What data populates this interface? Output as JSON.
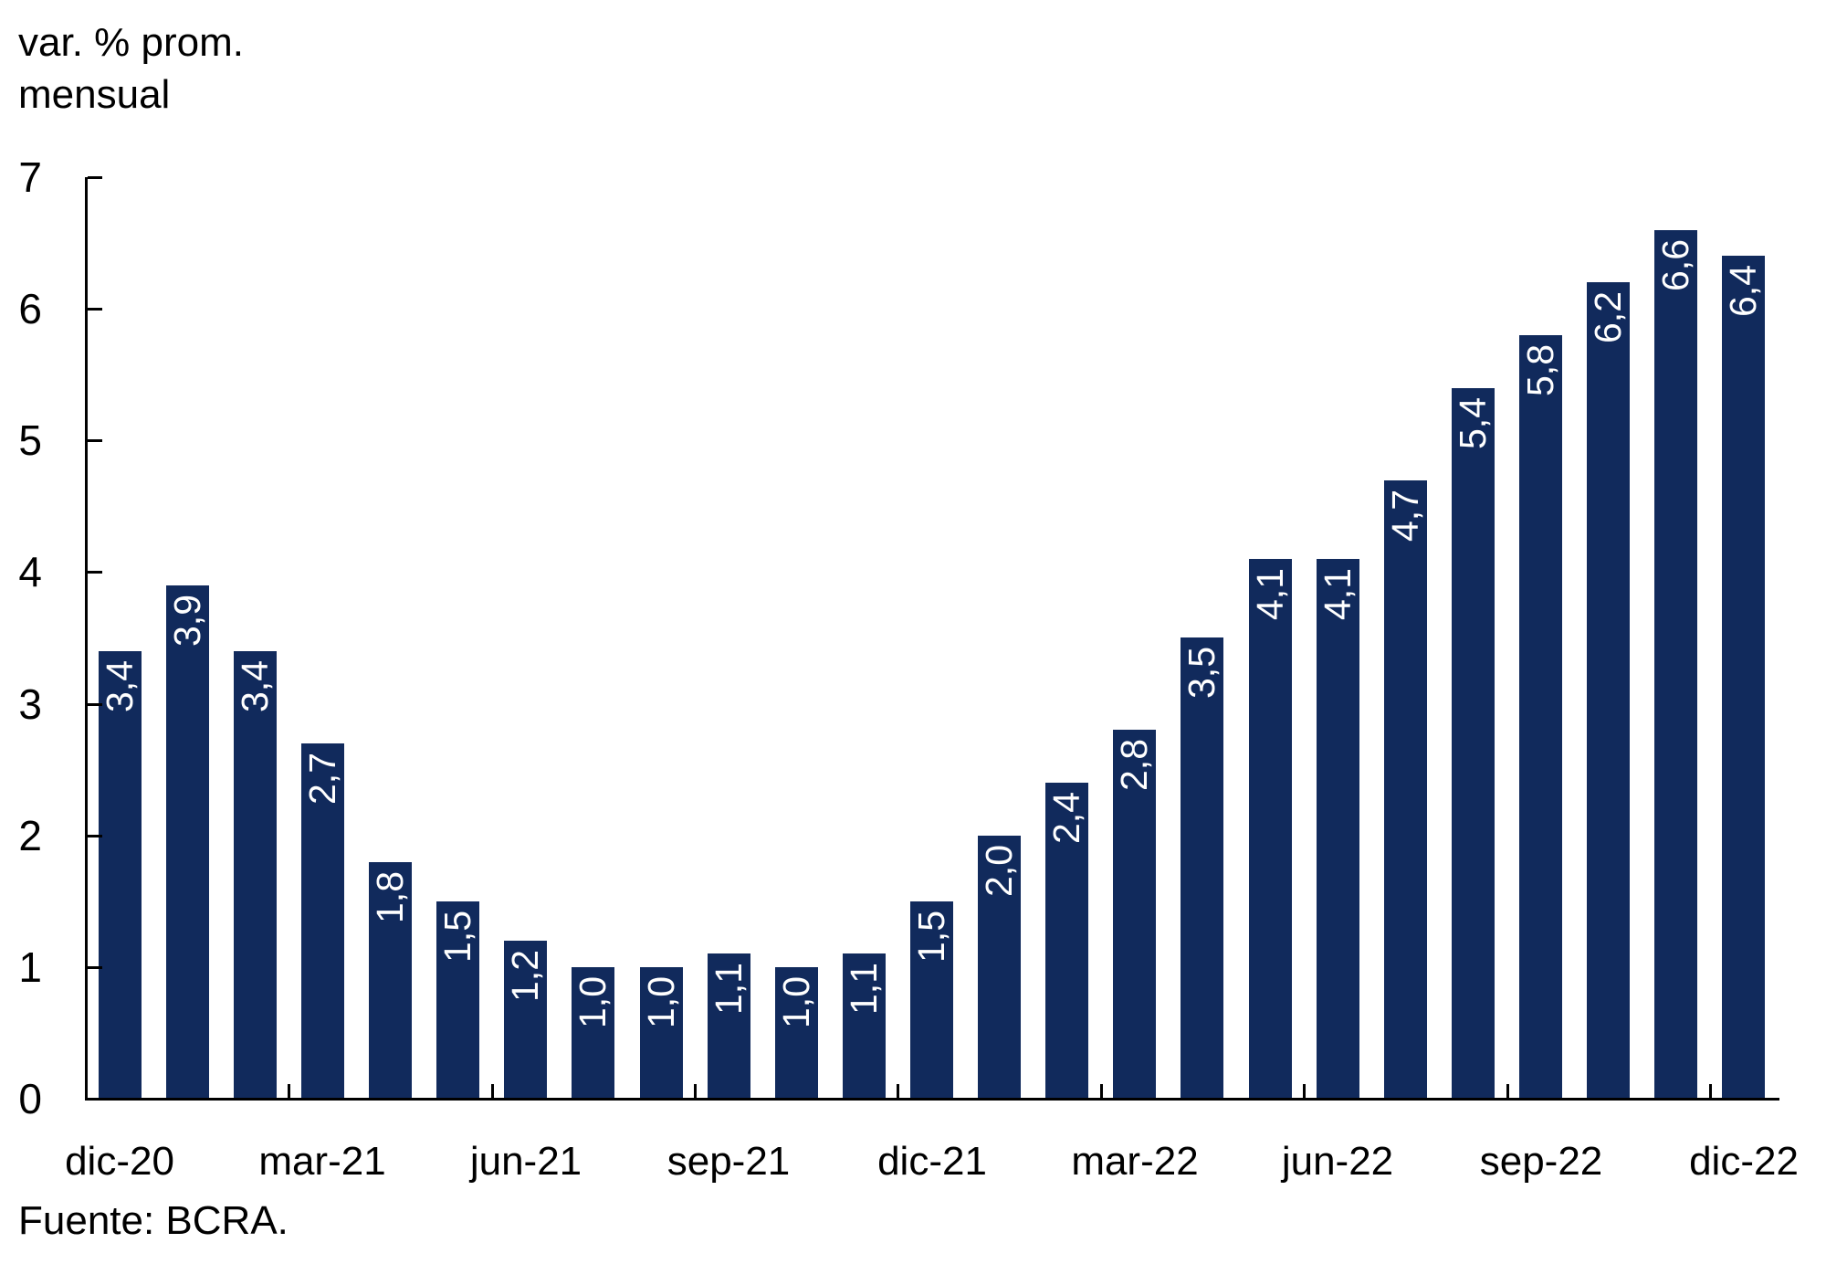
{
  "chart": {
    "y_axis_title_line1": "var. % prom.",
    "y_axis_title_line2": "mensual",
    "source": "Fuente: BCRA.",
    "colors": {
      "bar": "#112a5c",
      "bar_label": "#ffffff",
      "axis": "#000000",
      "text": "#000000"
    }
  },
  "chart_data": {
    "type": "bar",
    "title": "",
    "ylabel": "var. % prom. mensual",
    "xlabel": "",
    "ylim": [
      0,
      7
    ],
    "y_ticks": [
      0,
      1,
      2,
      3,
      4,
      5,
      6,
      7
    ],
    "x_tick_labels": [
      "dic-20",
      "mar-21",
      "jun-21",
      "sep-21",
      "dic-21",
      "mar-22",
      "jun-22",
      "sep-22",
      "dic-22"
    ],
    "x_label_interval": 3,
    "values": [
      3.4,
      3.9,
      3.4,
      2.7,
      1.8,
      1.5,
      1.2,
      1.0,
      1.0,
      1.1,
      1.0,
      1.1,
      1.5,
      2.0,
      2.4,
      2.8,
      3.5,
      4.1,
      4.1,
      4.7,
      5.4,
      5.8,
      6.2,
      6.6,
      6.4
    ],
    "bar_labels": [
      "3,4",
      "3,9",
      "3,4",
      "2,7",
      "1,8",
      "1,5",
      "1,2",
      "1,0",
      "1,0",
      "1,1",
      "1,0",
      "1,1",
      "1,5",
      "2,0",
      "2,4",
      "2,8",
      "3,5",
      "4,1",
      "4,1",
      "4,7",
      "5,4",
      "5,8",
      "6,2",
      "6,6",
      "6,4"
    ],
    "legend": "none",
    "grid": false,
    "bar_value_labels_position": "inside-end-rotated",
    "source": "Fuente: BCRA."
  }
}
